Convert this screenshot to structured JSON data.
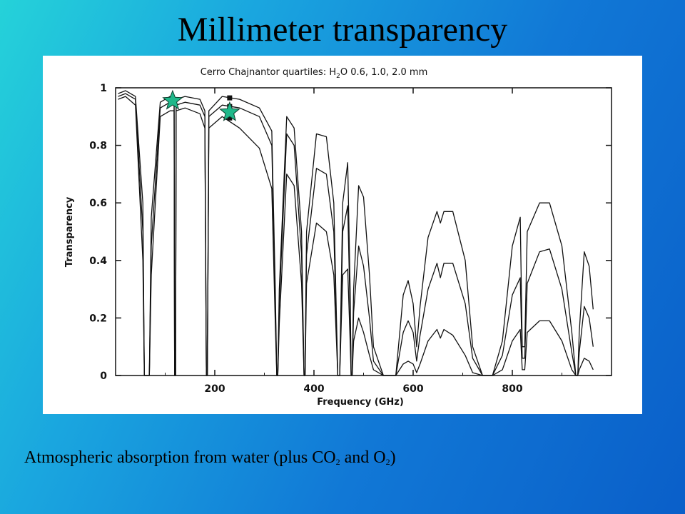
{
  "slide": {
    "title": "Millimeter transparency",
    "caption": {
      "prefix": "Atmospheric absorption from water (plus CO",
      "co2_sub": "2",
      "middle": " and O",
      "o2_sub": "2",
      "suffix": ")"
    }
  },
  "chart_data": {
    "type": "line",
    "title_parts": [
      "Cerro Chajnantor quartiles: H",
      "2",
      "O 0.6, 1.0, 2.0 mm"
    ],
    "xlabel": "Frequency (GHz)",
    "ylabel": "Transparency",
    "xlim": [
      0,
      1000
    ],
    "ylim": [
      0,
      1
    ],
    "x_ticks": [
      200,
      400,
      600,
      800
    ],
    "y_ticks": [
      "0",
      "0.2",
      "0.4",
      "0.6",
      "0.8",
      "1"
    ],
    "y_tick_values": [
      0,
      0.2,
      0.4,
      0.6,
      0.8,
      1.0
    ],
    "grid": false,
    "series": [
      {
        "pwv": 0.6,
        "points": [
          [
            5,
            0.98
          ],
          [
            20,
            0.99
          ],
          [
            40,
            0.97
          ],
          [
            55,
            0.6
          ],
          [
            58,
            0
          ],
          [
            68,
            0
          ],
          [
            72,
            0.55
          ],
          [
            90,
            0.95
          ],
          [
            110,
            0.97
          ],
          [
            118,
            0.96
          ],
          [
            119,
            0
          ],
          [
            121,
            0
          ],
          [
            122,
            0.96
          ],
          [
            140,
            0.97
          ],
          [
            170,
            0.96
          ],
          [
            180,
            0.92
          ],
          [
            183,
            0
          ],
          [
            185,
            0
          ],
          [
            188,
            0.92
          ],
          [
            215,
            0.97
          ],
          [
            250,
            0.96
          ],
          [
            290,
            0.93
          ],
          [
            315,
            0.85
          ],
          [
            322,
            0.3
          ],
          [
            325,
            0
          ],
          [
            327,
            0
          ],
          [
            330,
            0.3
          ],
          [
            345,
            0.9
          ],
          [
            360,
            0.86
          ],
          [
            375,
            0.5
          ],
          [
            380,
            0
          ],
          [
            382,
            0
          ],
          [
            385,
            0.5
          ],
          [
            405,
            0.84
          ],
          [
            425,
            0.83
          ],
          [
            440,
            0.6
          ],
          [
            448,
            0
          ],
          [
            452,
            0
          ],
          [
            458,
            0.6
          ],
          [
            468,
            0.74
          ],
          [
            473,
            0.3
          ],
          [
            475,
            0
          ],
          [
            477,
            0
          ],
          [
            480,
            0.3
          ],
          [
            490,
            0.66
          ],
          [
            500,
            0.62
          ],
          [
            512,
            0.35
          ],
          [
            520,
            0.1
          ],
          [
            540,
            0
          ],
          [
            565,
            0
          ],
          [
            580,
            0.28
          ],
          [
            590,
            0.33
          ],
          [
            600,
            0.25
          ],
          [
            607,
            0.1
          ],
          [
            614,
            0.24
          ],
          [
            630,
            0.48
          ],
          [
            648,
            0.57
          ],
          [
            655,
            0.53
          ],
          [
            662,
            0.57
          ],
          [
            680,
            0.57
          ],
          [
            705,
            0.4
          ],
          [
            720,
            0.1
          ],
          [
            740,
            0
          ],
          [
            760,
            0
          ],
          [
            780,
            0.12
          ],
          [
            800,
            0.45
          ],
          [
            816,
            0.55
          ],
          [
            820,
            0.1
          ],
          [
            825,
            0.1
          ],
          [
            830,
            0.5
          ],
          [
            855,
            0.6
          ],
          [
            875,
            0.6
          ],
          [
            900,
            0.45
          ],
          [
            920,
            0.15
          ],
          [
            928,
            0
          ],
          [
            932,
            0
          ],
          [
            935,
            0.15
          ],
          [
            945,
            0.43
          ],
          [
            955,
            0.38
          ],
          [
            963,
            0.23
          ]
        ]
      },
      {
        "pwv": 1.0,
        "points": [
          [
            5,
            0.97
          ],
          [
            20,
            0.98
          ],
          [
            40,
            0.96
          ],
          [
            55,
            0.5
          ],
          [
            58,
            0
          ],
          [
            68,
            0
          ],
          [
            72,
            0.45
          ],
          [
            90,
            0.93
          ],
          [
            110,
            0.95
          ],
          [
            118,
            0.94
          ],
          [
            119,
            0
          ],
          [
            121,
            0
          ],
          [
            122,
            0.94
          ],
          [
            140,
            0.95
          ],
          [
            170,
            0.94
          ],
          [
            180,
            0.9
          ],
          [
            183,
            0
          ],
          [
            185,
            0
          ],
          [
            188,
            0.9
          ],
          [
            215,
            0.94
          ],
          [
            250,
            0.93
          ],
          [
            290,
            0.9
          ],
          [
            315,
            0.8
          ],
          [
            322,
            0.25
          ],
          [
            325,
            0
          ],
          [
            327,
            0
          ],
          [
            330,
            0.25
          ],
          [
            345,
            0.84
          ],
          [
            360,
            0.8
          ],
          [
            375,
            0.42
          ],
          [
            380,
            0
          ],
          [
            382,
            0
          ],
          [
            385,
            0.42
          ],
          [
            405,
            0.72
          ],
          [
            425,
            0.7
          ],
          [
            440,
            0.5
          ],
          [
            448,
            0
          ],
          [
            452,
            0
          ],
          [
            458,
            0.5
          ],
          [
            468,
            0.59
          ],
          [
            473,
            0.22
          ],
          [
            475,
            0
          ],
          [
            477,
            0
          ],
          [
            480,
            0.22
          ],
          [
            490,
            0.45
          ],
          [
            500,
            0.38
          ],
          [
            512,
            0.2
          ],
          [
            520,
            0.05
          ],
          [
            540,
            0
          ],
          [
            565,
            0
          ],
          [
            580,
            0.15
          ],
          [
            590,
            0.19
          ],
          [
            600,
            0.15
          ],
          [
            607,
            0.05
          ],
          [
            614,
            0.14
          ],
          [
            630,
            0.3
          ],
          [
            648,
            0.39
          ],
          [
            655,
            0.34
          ],
          [
            662,
            0.39
          ],
          [
            680,
            0.39
          ],
          [
            705,
            0.25
          ],
          [
            720,
            0.06
          ],
          [
            740,
            0
          ],
          [
            760,
            0
          ],
          [
            780,
            0.07
          ],
          [
            800,
            0.28
          ],
          [
            816,
            0.34
          ],
          [
            820,
            0.06
          ],
          [
            825,
            0.06
          ],
          [
            830,
            0.32
          ],
          [
            855,
            0.43
          ],
          [
            875,
            0.44
          ],
          [
            900,
            0.3
          ],
          [
            920,
            0.08
          ],
          [
            928,
            0
          ],
          [
            932,
            0
          ],
          [
            935,
            0.08
          ],
          [
            945,
            0.24
          ],
          [
            955,
            0.2
          ],
          [
            963,
            0.1
          ]
        ]
      },
      {
        "pwv": 2.0,
        "points": [
          [
            5,
            0.96
          ],
          [
            20,
            0.97
          ],
          [
            40,
            0.94
          ],
          [
            55,
            0.4
          ],
          [
            58,
            0
          ],
          [
            68,
            0
          ],
          [
            72,
            0.35
          ],
          [
            90,
            0.9
          ],
          [
            110,
            0.92
          ],
          [
            118,
            0.92
          ],
          [
            119,
            0
          ],
          [
            121,
            0
          ],
          [
            122,
            0.92
          ],
          [
            140,
            0.93
          ],
          [
            170,
            0.91
          ],
          [
            180,
            0.86
          ],
          [
            183,
            0
          ],
          [
            185,
            0
          ],
          [
            188,
            0.86
          ],
          [
            215,
            0.9
          ],
          [
            250,
            0.86
          ],
          [
            290,
            0.79
          ],
          [
            315,
            0.65
          ],
          [
            322,
            0.18
          ],
          [
            325,
            0
          ],
          [
            327,
            0
          ],
          [
            330,
            0.18
          ],
          [
            345,
            0.7
          ],
          [
            360,
            0.66
          ],
          [
            375,
            0.32
          ],
          [
            380,
            0
          ],
          [
            382,
            0
          ],
          [
            385,
            0.32
          ],
          [
            405,
            0.53
          ],
          [
            425,
            0.5
          ],
          [
            440,
            0.35
          ],
          [
            448,
            0
          ],
          [
            452,
            0
          ],
          [
            458,
            0.35
          ],
          [
            468,
            0.37
          ],
          [
            473,
            0.12
          ],
          [
            475,
            0
          ],
          [
            477,
            0
          ],
          [
            480,
            0.12
          ],
          [
            490,
            0.2
          ],
          [
            500,
            0.15
          ],
          [
            512,
            0.07
          ],
          [
            520,
            0.02
          ],
          [
            540,
            0
          ],
          [
            565,
            0
          ],
          [
            580,
            0.04
          ],
          [
            590,
            0.05
          ],
          [
            600,
            0.04
          ],
          [
            607,
            0.01
          ],
          [
            614,
            0.04
          ],
          [
            630,
            0.12
          ],
          [
            648,
            0.16
          ],
          [
            655,
            0.13
          ],
          [
            662,
            0.16
          ],
          [
            680,
            0.14
          ],
          [
            705,
            0.07
          ],
          [
            720,
            0.01
          ],
          [
            740,
            0
          ],
          [
            760,
            0
          ],
          [
            780,
            0.02
          ],
          [
            800,
            0.12
          ],
          [
            816,
            0.16
          ],
          [
            820,
            0.02
          ],
          [
            825,
            0.02
          ],
          [
            830,
            0.15
          ],
          [
            855,
            0.19
          ],
          [
            875,
            0.19
          ],
          [
            900,
            0.12
          ],
          [
            920,
            0.02
          ],
          [
            928,
            0
          ],
          [
            932,
            0
          ],
          [
            935,
            0.02
          ],
          [
            945,
            0.06
          ],
          [
            955,
            0.05
          ],
          [
            963,
            0.02
          ]
        ]
      }
    ],
    "star_markers": [
      {
        "x": 115,
        "y": 0.955,
        "color": "#1fb88a"
      },
      {
        "x": 230,
        "y": 0.915,
        "color": "#1fb88a"
      }
    ],
    "square_markers": [
      {
        "x": 230,
        "y": 0.965
      },
      {
        "x": 230,
        "y": 0.935
      },
      {
        "x": 230,
        "y": 0.895
      }
    ]
  }
}
